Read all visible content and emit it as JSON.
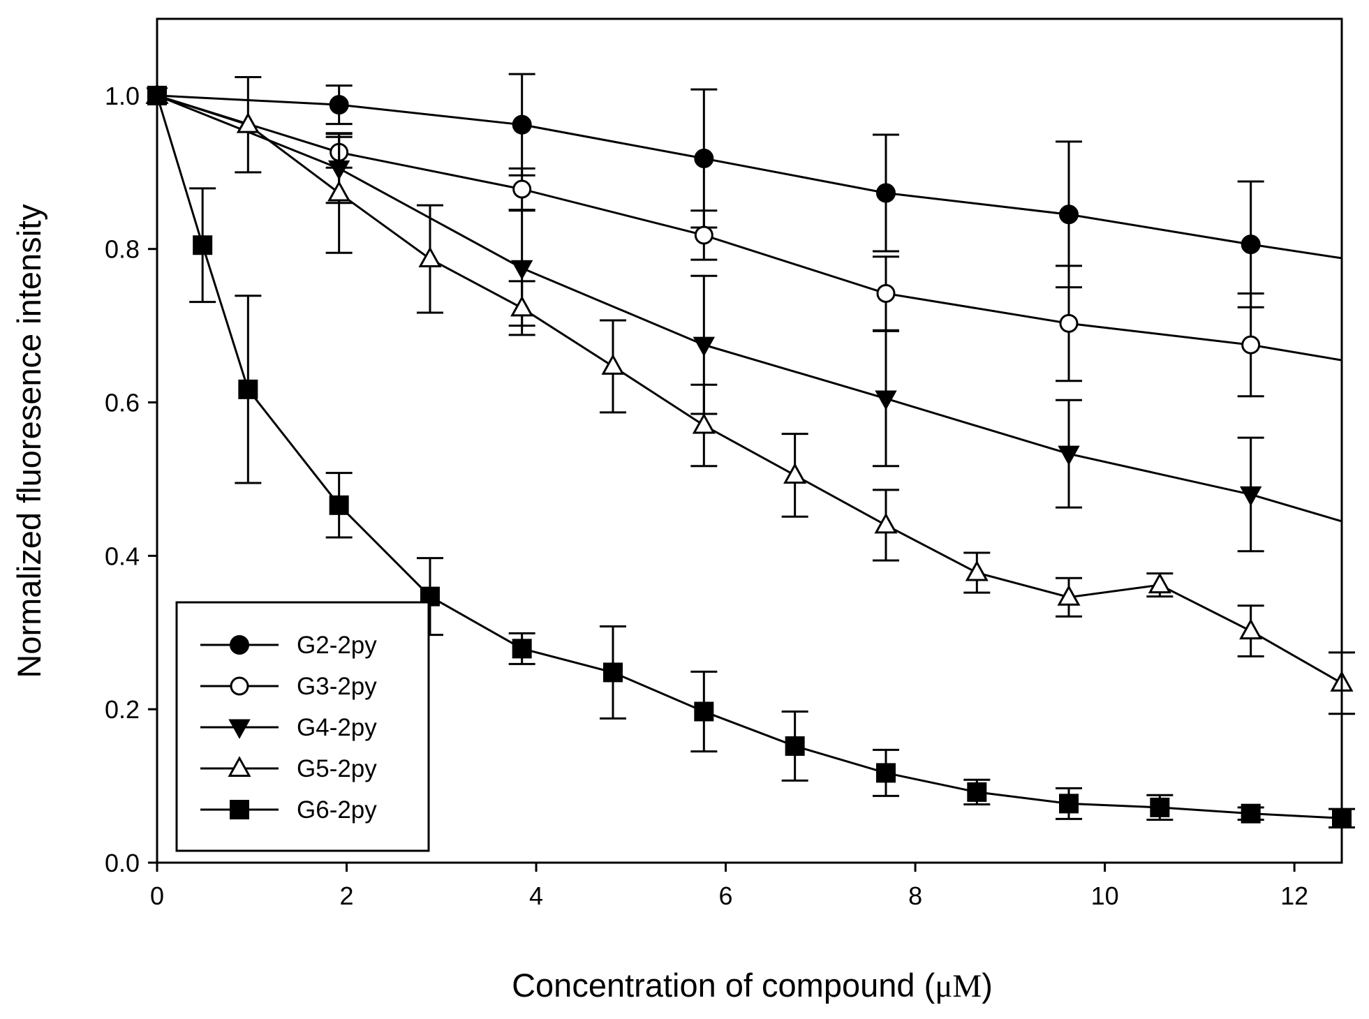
{
  "chart_data": {
    "type": "line",
    "title": "",
    "xlabel_prefix": "Concentration of compound (",
    "xlabel_unit": "μM",
    "xlabel_suffix": ")",
    "ylabel": "Normalized fluoresence intensity",
    "xlim": [
      0,
      12.5
    ],
    "ylim": [
      0,
      1.1
    ],
    "xticks": [
      0,
      2,
      4,
      6,
      8,
      10,
      12
    ],
    "yticks": [
      0.0,
      0.2,
      0.4,
      0.6,
      0.8,
      1.0
    ],
    "xtick_labels": [
      "0",
      "2",
      "4",
      "6",
      "8",
      "10",
      "12"
    ],
    "ytick_labels": [
      "0.0",
      "0.2",
      "0.4",
      "0.6",
      "0.8",
      "1.0"
    ],
    "grid": false,
    "legend_position": "bottom-left",
    "series": [
      {
        "name": "G2-2py",
        "marker": "filled-circle",
        "x": [
          0,
          1.92,
          3.85,
          5.77,
          7.69,
          9.62,
          11.54,
          12.5
        ],
        "y": [
          1.0,
          0.988,
          0.962,
          0.918,
          0.873,
          0.845,
          0.806,
          0.788
        ],
        "err": [
          0,
          0.025,
          0.066,
          0.09,
          0.076,
          0.095,
          0.082,
          null
        ],
        "markers": [
          true,
          true,
          true,
          true,
          true,
          true,
          true,
          false
        ]
      },
      {
        "name": "G3-2py",
        "marker": "open-circle",
        "x": [
          0,
          1.92,
          3.85,
          5.77,
          7.69,
          9.62,
          11.54,
          12.5
        ],
        "y": [
          1.0,
          0.926,
          0.878,
          0.818,
          0.742,
          0.703,
          0.675,
          0.655
        ],
        "err": [
          0,
          0.02,
          0.027,
          0.032,
          0.048,
          0.075,
          0.067,
          null
        ],
        "markers": [
          true,
          true,
          true,
          true,
          true,
          true,
          true,
          false
        ]
      },
      {
        "name": "G4-2py",
        "marker": "filled-triangle-down",
        "x": [
          0,
          1.92,
          3.85,
          5.77,
          7.69,
          9.62,
          11.54,
          12.5
        ],
        "y": [
          1.0,
          0.905,
          0.775,
          0.675,
          0.605,
          0.533,
          0.48,
          0.445
        ],
        "err": [
          0,
          0.045,
          0.075,
          0.09,
          0.088,
          0.07,
          0.074,
          null
        ],
        "markers": [
          true,
          true,
          true,
          true,
          true,
          true,
          true,
          false
        ]
      },
      {
        "name": "G5-2py",
        "marker": "open-triangle-up",
        "x": [
          0,
          0.96,
          1.92,
          2.88,
          3.85,
          4.81,
          5.77,
          6.73,
          7.69,
          8.65,
          9.62,
          10.58,
          11.54,
          12.5
        ],
        "y": [
          1.0,
          0.962,
          0.873,
          0.787,
          0.723,
          0.647,
          0.57,
          0.505,
          0.44,
          0.378,
          0.346,
          0.362,
          0.302,
          0.234
        ],
        "err": [
          0,
          0.062,
          0.078,
          0.07,
          0.035,
          0.06,
          0.053,
          0.054,
          0.046,
          0.026,
          0.025,
          0.015,
          0.033,
          0.04
        ],
        "markers": [
          true,
          true,
          true,
          true,
          true,
          true,
          true,
          true,
          true,
          true,
          true,
          true,
          true,
          true
        ]
      },
      {
        "name": "G6-2py",
        "marker": "filled-square",
        "x": [
          0,
          0.48,
          0.96,
          1.92,
          2.88,
          3.85,
          4.81,
          5.77,
          6.73,
          7.69,
          8.65,
          9.62,
          10.58,
          11.54,
          12.5
        ],
        "y": [
          1.0,
          0.805,
          0.617,
          0.466,
          0.347,
          0.279,
          0.248,
          0.197,
          0.152,
          0.117,
          0.092,
          0.077,
          0.072,
          0.064,
          0.058
        ],
        "err": [
          0,
          0.074,
          0.122,
          0.042,
          0.05,
          0.02,
          0.06,
          0.052,
          0.045,
          0.03,
          0.016,
          0.02,
          0.016,
          0.008,
          0.012
        ],
        "markers": [
          true,
          true,
          true,
          true,
          true,
          true,
          true,
          true,
          true,
          true,
          true,
          true,
          true,
          true,
          true
        ]
      }
    ]
  }
}
